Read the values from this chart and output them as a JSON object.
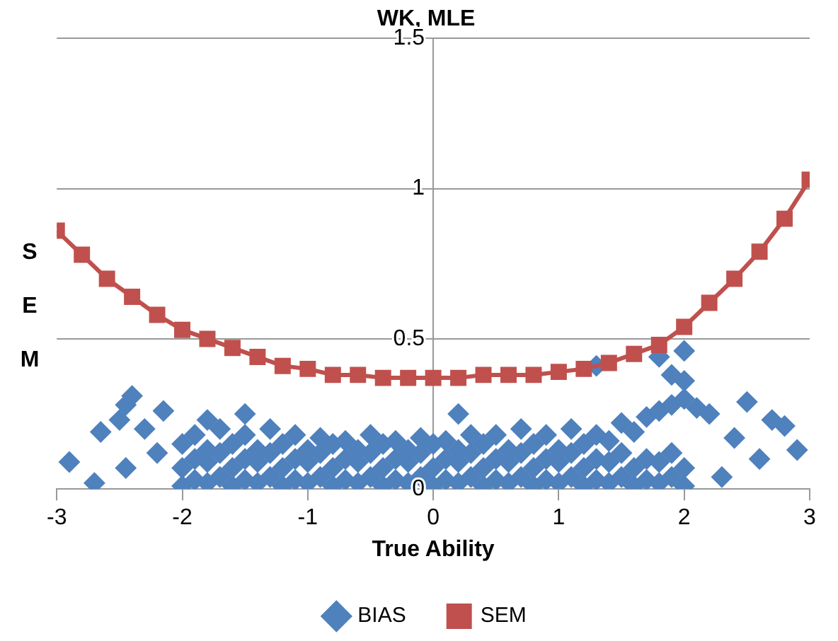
{
  "chart_data": {
    "type": "scatter",
    "title": "WK, MLE",
    "xlabel": "True Ability",
    "ylabel": "SEM",
    "xlim": [
      -3,
      3
    ],
    "ylim": [
      0,
      1.5
    ],
    "xticks": [
      -3,
      -2,
      -1,
      0,
      1,
      2,
      3
    ],
    "yticks": [
      0,
      0.5,
      1,
      1.5
    ],
    "grid": "y",
    "legend": "bottom",
    "series": [
      {
        "name": "BIAS",
        "type": "scatter",
        "marker": "diamond",
        "color": "#4f81bd",
        "x": [
          -2.9,
          -2.7,
          -2.65,
          -2.5,
          -2.45,
          -2.4,
          -2.45,
          -2.3,
          -2.15,
          -2.2,
          1.3,
          1.8,
          2.0,
          1.9,
          2.0,
          2.5,
          2.7,
          2.8,
          2.9,
          2.6,
          2.3,
          2.4,
          2.2,
          2.1,
          0.2,
          -1.5,
          -1.8,
          -2.0,
          -2.0,
          -2.0,
          -1.9,
          -1.9,
          -1.9,
          -1.8,
          -1.8,
          -1.8,
          -1.7,
          -1.7,
          -1.7,
          -1.6,
          -1.6,
          -1.6,
          -1.5,
          -1.5,
          -1.5,
          -1.4,
          -1.4,
          -1.4,
          -1.3,
          -1.3,
          -1.3,
          -1.2,
          -1.2,
          -1.2,
          -1.1,
          -1.1,
          -1.1,
          -1.0,
          -1.0,
          -1.0,
          -0.9,
          -0.9,
          -0.9,
          -0.8,
          -0.8,
          -0.8,
          -0.7,
          -0.7,
          -0.7,
          -0.6,
          -0.6,
          -0.6,
          -0.5,
          -0.5,
          -0.5,
          -0.4,
          -0.4,
          -0.4,
          -0.3,
          -0.3,
          -0.3,
          -0.2,
          -0.2,
          -0.2,
          -0.1,
          -0.1,
          -0.1,
          0.0,
          0.0,
          0.0,
          0.1,
          0.1,
          0.1,
          0.2,
          0.2,
          0.2,
          0.3,
          0.3,
          0.3,
          0.4,
          0.4,
          0.4,
          0.5,
          0.5,
          0.5,
          0.6,
          0.6,
          0.6,
          0.7,
          0.7,
          0.7,
          0.8,
          0.8,
          0.8,
          0.9,
          0.9,
          0.9,
          1.0,
          1.0,
          1.0,
          1.1,
          1.1,
          1.1,
          1.2,
          1.2,
          1.2,
          1.3,
          1.3,
          1.3,
          1.4,
          1.4,
          1.4,
          1.5,
          1.5,
          1.5,
          1.6,
          1.6,
          1.6,
          1.7,
          1.7,
          1.7,
          1.8,
          1.8,
          1.8,
          1.9,
          1.9,
          1.9,
          2.0,
          2.0,
          2.0
        ],
        "values": [
          0.09,
          0.02,
          0.19,
          0.23,
          0.28,
          0.31,
          0.07,
          0.2,
          0.26,
          0.12,
          0.41,
          0.44,
          0.46,
          0.38,
          0.36,
          0.29,
          0.23,
          0.21,
          0.13,
          0.1,
          0.04,
          0.17,
          0.25,
          0.27,
          0.25,
          0.25,
          0.23,
          0.01,
          0.07,
          0.15,
          0.03,
          0.1,
          0.18,
          0.02,
          0.09,
          0.13,
          0.04,
          0.12,
          0.2,
          0.01,
          0.07,
          0.15,
          0.03,
          0.1,
          0.18,
          0.02,
          0.09,
          0.13,
          0.04,
          0.12,
          0.2,
          0.01,
          0.07,
          0.15,
          0.03,
          0.1,
          0.18,
          0.02,
          0.09,
          0.13,
          0.04,
          0.12,
          0.17,
          0.01,
          0.07,
          0.15,
          0.03,
          0.1,
          0.16,
          0.02,
          0.09,
          0.13,
          0.04,
          0.12,
          0.18,
          0.01,
          0.07,
          0.15,
          0.03,
          0.1,
          0.16,
          0.02,
          0.09,
          0.13,
          0.04,
          0.12,
          0.17,
          0.01,
          0.07,
          0.15,
          0.03,
          0.1,
          0.16,
          0.02,
          0.09,
          0.13,
          0.04,
          0.12,
          0.18,
          0.01,
          0.07,
          0.15,
          0.03,
          0.1,
          0.18,
          0.02,
          0.09,
          0.13,
          0.04,
          0.12,
          0.2,
          0.01,
          0.07,
          0.15,
          0.03,
          0.1,
          0.18,
          0.02,
          0.09,
          0.13,
          0.04,
          0.12,
          0.2,
          0.01,
          0.07,
          0.15,
          0.03,
          0.1,
          0.18,
          0.02,
          0.09,
          0.16,
          0.04,
          0.12,
          0.22,
          0.01,
          0.07,
          0.19,
          0.03,
          0.1,
          0.24,
          0.02,
          0.09,
          0.26,
          0.04,
          0.12,
          0.28,
          0.01,
          0.07,
          0.3
        ]
      },
      {
        "name": "SEM",
        "type": "line",
        "marker": "square",
        "line_style": "solid",
        "color": "#c0504d",
        "x": [
          -3,
          -2.8,
          -2.6,
          -2.4,
          -2.2,
          -2,
          -1.8,
          -1.6,
          -1.4,
          -1.2,
          -1,
          -0.8,
          -0.6,
          -0.4,
          -0.2,
          0,
          0.2,
          0.4,
          0.6,
          0.8,
          1,
          1.2,
          1.4,
          1.6,
          1.8,
          2,
          2.2,
          2.4,
          2.6,
          2.8,
          3
        ],
        "values": [
          0.86,
          0.78,
          0.7,
          0.64,
          0.58,
          0.53,
          0.5,
          0.47,
          0.44,
          0.41,
          0.4,
          0.38,
          0.38,
          0.37,
          0.37,
          0.37,
          0.37,
          0.38,
          0.38,
          0.38,
          0.39,
          0.4,
          0.42,
          0.45,
          0.48,
          0.54,
          0.62,
          0.7,
          0.79,
          0.9,
          1.03
        ]
      }
    ]
  }
}
